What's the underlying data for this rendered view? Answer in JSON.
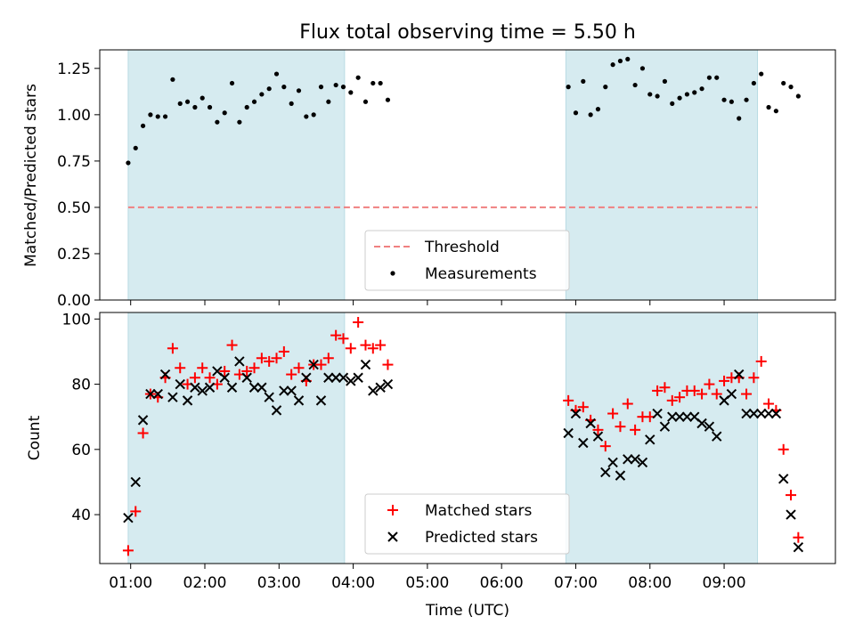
{
  "chart_data": [
    {
      "type": "scatter",
      "title": "Flux total observing time = 5.50 h",
      "xlabel": "",
      "ylabel": "Matched/Predicted stars",
      "xlim": [
        "00:35",
        "10:30"
      ],
      "ylim": [
        0,
        1.35
      ],
      "y_ticks": [
        "0.00",
        "0.25",
        "0.50",
        "0.75",
        "1.00",
        "1.25"
      ],
      "shaded_intervals": [
        [
          "00:58",
          "03:53"
        ],
        [
          "06:52",
          "09:27"
        ]
      ],
      "shade_color": "#d6ebf0",
      "series": [
        {
          "name": "Threshold",
          "kind": "hline",
          "y": 0.5,
          "color": "#f08080",
          "line_style": "dashed"
        },
        {
          "name": "Measurements",
          "kind": "scatter",
          "marker": "dot",
          "color": "#000000",
          "points": [
            [
              "00:58",
              0.74
            ],
            [
              "01:04",
              0.82
            ],
            [
              "01:10",
              0.94
            ],
            [
              "01:16",
              1.0
            ],
            [
              "01:22",
              0.99
            ],
            [
              "01:28",
              0.99
            ],
            [
              "01:34",
              1.19
            ],
            [
              "01:40",
              1.06
            ],
            [
              "01:46",
              1.07
            ],
            [
              "01:52",
              1.04
            ],
            [
              "01:58",
              1.09
            ],
            [
              "02:04",
              1.04
            ],
            [
              "02:10",
              0.96
            ],
            [
              "02:16",
              1.01
            ],
            [
              "02:22",
              1.17
            ],
            [
              "02:28",
              0.96
            ],
            [
              "02:34",
              1.04
            ],
            [
              "02:40",
              1.07
            ],
            [
              "02:46",
              1.11
            ],
            [
              "02:52",
              1.14
            ],
            [
              "02:58",
              1.22
            ],
            [
              "03:04",
              1.15
            ],
            [
              "03:10",
              1.06
            ],
            [
              "03:16",
              1.13
            ],
            [
              "03:22",
              0.99
            ],
            [
              "03:28",
              1.0
            ],
            [
              "03:34",
              1.15
            ],
            [
              "03:40",
              1.07
            ],
            [
              "03:46",
              1.16
            ],
            [
              "03:52",
              1.15
            ],
            [
              "03:58",
              1.12
            ],
            [
              "04:04",
              1.2
            ],
            [
              "04:10",
              1.07
            ],
            [
              "04:16",
              1.17
            ],
            [
              "04:22",
              1.17
            ],
            [
              "04:28",
              1.08
            ],
            [
              "06:54",
              1.15
            ],
            [
              "07:00",
              1.01
            ],
            [
              "07:06",
              1.18
            ],
            [
              "07:12",
              1.0
            ],
            [
              "07:18",
              1.03
            ],
            [
              "07:24",
              1.15
            ],
            [
              "07:30",
              1.27
            ],
            [
              "07:36",
              1.29
            ],
            [
              "07:42",
              1.3
            ],
            [
              "07:48",
              1.16
            ],
            [
              "07:54",
              1.25
            ],
            [
              "08:00",
              1.11
            ],
            [
              "08:06",
              1.1
            ],
            [
              "08:12",
              1.18
            ],
            [
              "08:18",
              1.06
            ],
            [
              "08:24",
              1.09
            ],
            [
              "08:30",
              1.11
            ],
            [
              "08:36",
              1.12
            ],
            [
              "08:42",
              1.14
            ],
            [
              "08:48",
              1.2
            ],
            [
              "08:54",
              1.2
            ],
            [
              "09:00",
              1.08
            ],
            [
              "09:06",
              1.07
            ],
            [
              "09:12",
              0.98
            ],
            [
              "09:18",
              1.08
            ],
            [
              "09:24",
              1.17
            ],
            [
              "09:30",
              1.22
            ],
            [
              "09:36",
              1.04
            ],
            [
              "09:42",
              1.02
            ],
            [
              "09:48",
              1.17
            ],
            [
              "09:54",
              1.15
            ],
            [
              "10:00",
              1.1
            ]
          ]
        }
      ],
      "legend": {
        "position": "bottom-center",
        "entries": [
          "Threshold",
          "Measurements"
        ]
      },
      "grid": false
    },
    {
      "type": "scatter",
      "title": "",
      "xlabel": "Time (UTC)",
      "ylabel": "Count",
      "xlim": [
        "00:35",
        "10:30"
      ],
      "ylim": [
        25,
        102
      ],
      "x_ticks": [
        "01:00",
        "02:00",
        "03:00",
        "04:00",
        "05:00",
        "06:00",
        "07:00",
        "08:00",
        "09:00"
      ],
      "y_ticks": [
        "40",
        "60",
        "80",
        "100"
      ],
      "shaded_intervals": [
        [
          "00:58",
          "03:53"
        ],
        [
          "06:52",
          "09:27"
        ]
      ],
      "shade_color": "#d6ebf0",
      "series": [
        {
          "name": "Matched stars",
          "marker": "plus",
          "color": "#ff0000",
          "points": [
            [
              "00:58",
              29
            ],
            [
              "01:04",
              41
            ],
            [
              "01:10",
              65
            ],
            [
              "01:16",
              77
            ],
            [
              "01:22",
              76
            ],
            [
              "01:28",
              82
            ],
            [
              "01:34",
              91
            ],
            [
              "01:40",
              85
            ],
            [
              "01:46",
              80
            ],
            [
              "01:52",
              82
            ],
            [
              "01:58",
              85
            ],
            [
              "02:04",
              82
            ],
            [
              "02:10",
              80
            ],
            [
              "02:16",
              84
            ],
            [
              "02:22",
              92
            ],
            [
              "02:28",
              83
            ],
            [
              "02:34",
              84
            ],
            [
              "02:40",
              85
            ],
            [
              "02:46",
              88
            ],
            [
              "02:52",
              87
            ],
            [
              "02:58",
              88
            ],
            [
              "03:04",
              90
            ],
            [
              "03:10",
              83
            ],
            [
              "03:16",
              85
            ],
            [
              "03:22",
              81
            ],
            [
              "03:28",
              86
            ],
            [
              "03:34",
              86
            ],
            [
              "03:40",
              88
            ],
            [
              "03:46",
              95
            ],
            [
              "03:52",
              94
            ],
            [
              "03:58",
              91
            ],
            [
              "04:04",
              99
            ],
            [
              "04:10",
              92
            ],
            [
              "04:16",
              91
            ],
            [
              "04:22",
              92
            ],
            [
              "04:28",
              86
            ],
            [
              "06:54",
              75
            ],
            [
              "07:00",
              72
            ],
            [
              "07:06",
              73
            ],
            [
              "07:12",
              69
            ],
            [
              "07:18",
              66
            ],
            [
              "07:24",
              61
            ],
            [
              "07:30",
              71
            ],
            [
              "07:36",
              67
            ],
            [
              "07:42",
              74
            ],
            [
              "07:48",
              66
            ],
            [
              "07:54",
              70
            ],
            [
              "08:00",
              70
            ],
            [
              "08:06",
              78
            ],
            [
              "08:12",
              79
            ],
            [
              "08:18",
              75
            ],
            [
              "08:24",
              76
            ],
            [
              "08:30",
              78
            ],
            [
              "08:36",
              78
            ],
            [
              "08:42",
              77
            ],
            [
              "08:48",
              80
            ],
            [
              "08:54",
              77
            ],
            [
              "09:00",
              81
            ],
            [
              "09:06",
              82
            ],
            [
              "09:12",
              82
            ],
            [
              "09:18",
              77
            ],
            [
              "09:24",
              82
            ],
            [
              "09:30",
              87
            ],
            [
              "09:36",
              74
            ],
            [
              "09:42",
              72
            ],
            [
              "09:48",
              60
            ],
            [
              "09:54",
              46
            ],
            [
              "10:00",
              33
            ]
          ]
        },
        {
          "name": "Predicted stars",
          "marker": "x",
          "color": "#000000",
          "points": [
            [
              "00:58",
              39
            ],
            [
              "01:04",
              50
            ],
            [
              "01:10",
              69
            ],
            [
              "01:16",
              77
            ],
            [
              "01:22",
              77
            ],
            [
              "01:28",
              83
            ],
            [
              "01:34",
              76
            ],
            [
              "01:40",
              80
            ],
            [
              "01:46",
              75
            ],
            [
              "01:52",
              79
            ],
            [
              "01:58",
              78
            ],
            [
              "02:04",
              79
            ],
            [
              "02:10",
              84
            ],
            [
              "02:16",
              82
            ],
            [
              "02:22",
              79
            ],
            [
              "02:28",
              87
            ],
            [
              "02:34",
              82
            ],
            [
              "02:40",
              79
            ],
            [
              "02:46",
              79
            ],
            [
              "02:52",
              76
            ],
            [
              "02:58",
              72
            ],
            [
              "03:04",
              78
            ],
            [
              "03:10",
              78
            ],
            [
              "03:16",
              75
            ],
            [
              "03:22",
              82
            ],
            [
              "03:28",
              86
            ],
            [
              "03:34",
              75
            ],
            [
              "03:40",
              82
            ],
            [
              "03:46",
              82
            ],
            [
              "03:52",
              82
            ],
            [
              "03:58",
              81
            ],
            [
              "04:04",
              82
            ],
            [
              "04:10",
              86
            ],
            [
              "04:16",
              78
            ],
            [
              "04:22",
              79
            ],
            [
              "04:28",
              80
            ],
            [
              "06:54",
              65
            ],
            [
              "07:00",
              71
            ],
            [
              "07:06",
              62
            ],
            [
              "07:12",
              68
            ],
            [
              "07:18",
              64
            ],
            [
              "07:24",
              53
            ],
            [
              "07:30",
              56
            ],
            [
              "07:36",
              52
            ],
            [
              "07:42",
              57
            ],
            [
              "07:48",
              57
            ],
            [
              "07:54",
              56
            ],
            [
              "08:00",
              63
            ],
            [
              "08:06",
              71
            ],
            [
              "08:12",
              67
            ],
            [
              "08:18",
              70
            ],
            [
              "08:24",
              70
            ],
            [
              "08:30",
              70
            ],
            [
              "08:36",
              70
            ],
            [
              "08:42",
              68
            ],
            [
              "08:48",
              67
            ],
            [
              "08:54",
              64
            ],
            [
              "09:00",
              75
            ],
            [
              "09:06",
              77
            ],
            [
              "09:12",
              83
            ],
            [
              "09:18",
              71
            ],
            [
              "09:24",
              71
            ],
            [
              "09:30",
              71
            ],
            [
              "09:36",
              71
            ],
            [
              "09:42",
              71
            ],
            [
              "09:48",
              51
            ],
            [
              "09:54",
              40
            ],
            [
              "10:00",
              30
            ]
          ]
        }
      ],
      "legend": {
        "position": "bottom-center",
        "entries": [
          "Matched stars",
          "Predicted stars"
        ]
      },
      "grid": false
    }
  ]
}
